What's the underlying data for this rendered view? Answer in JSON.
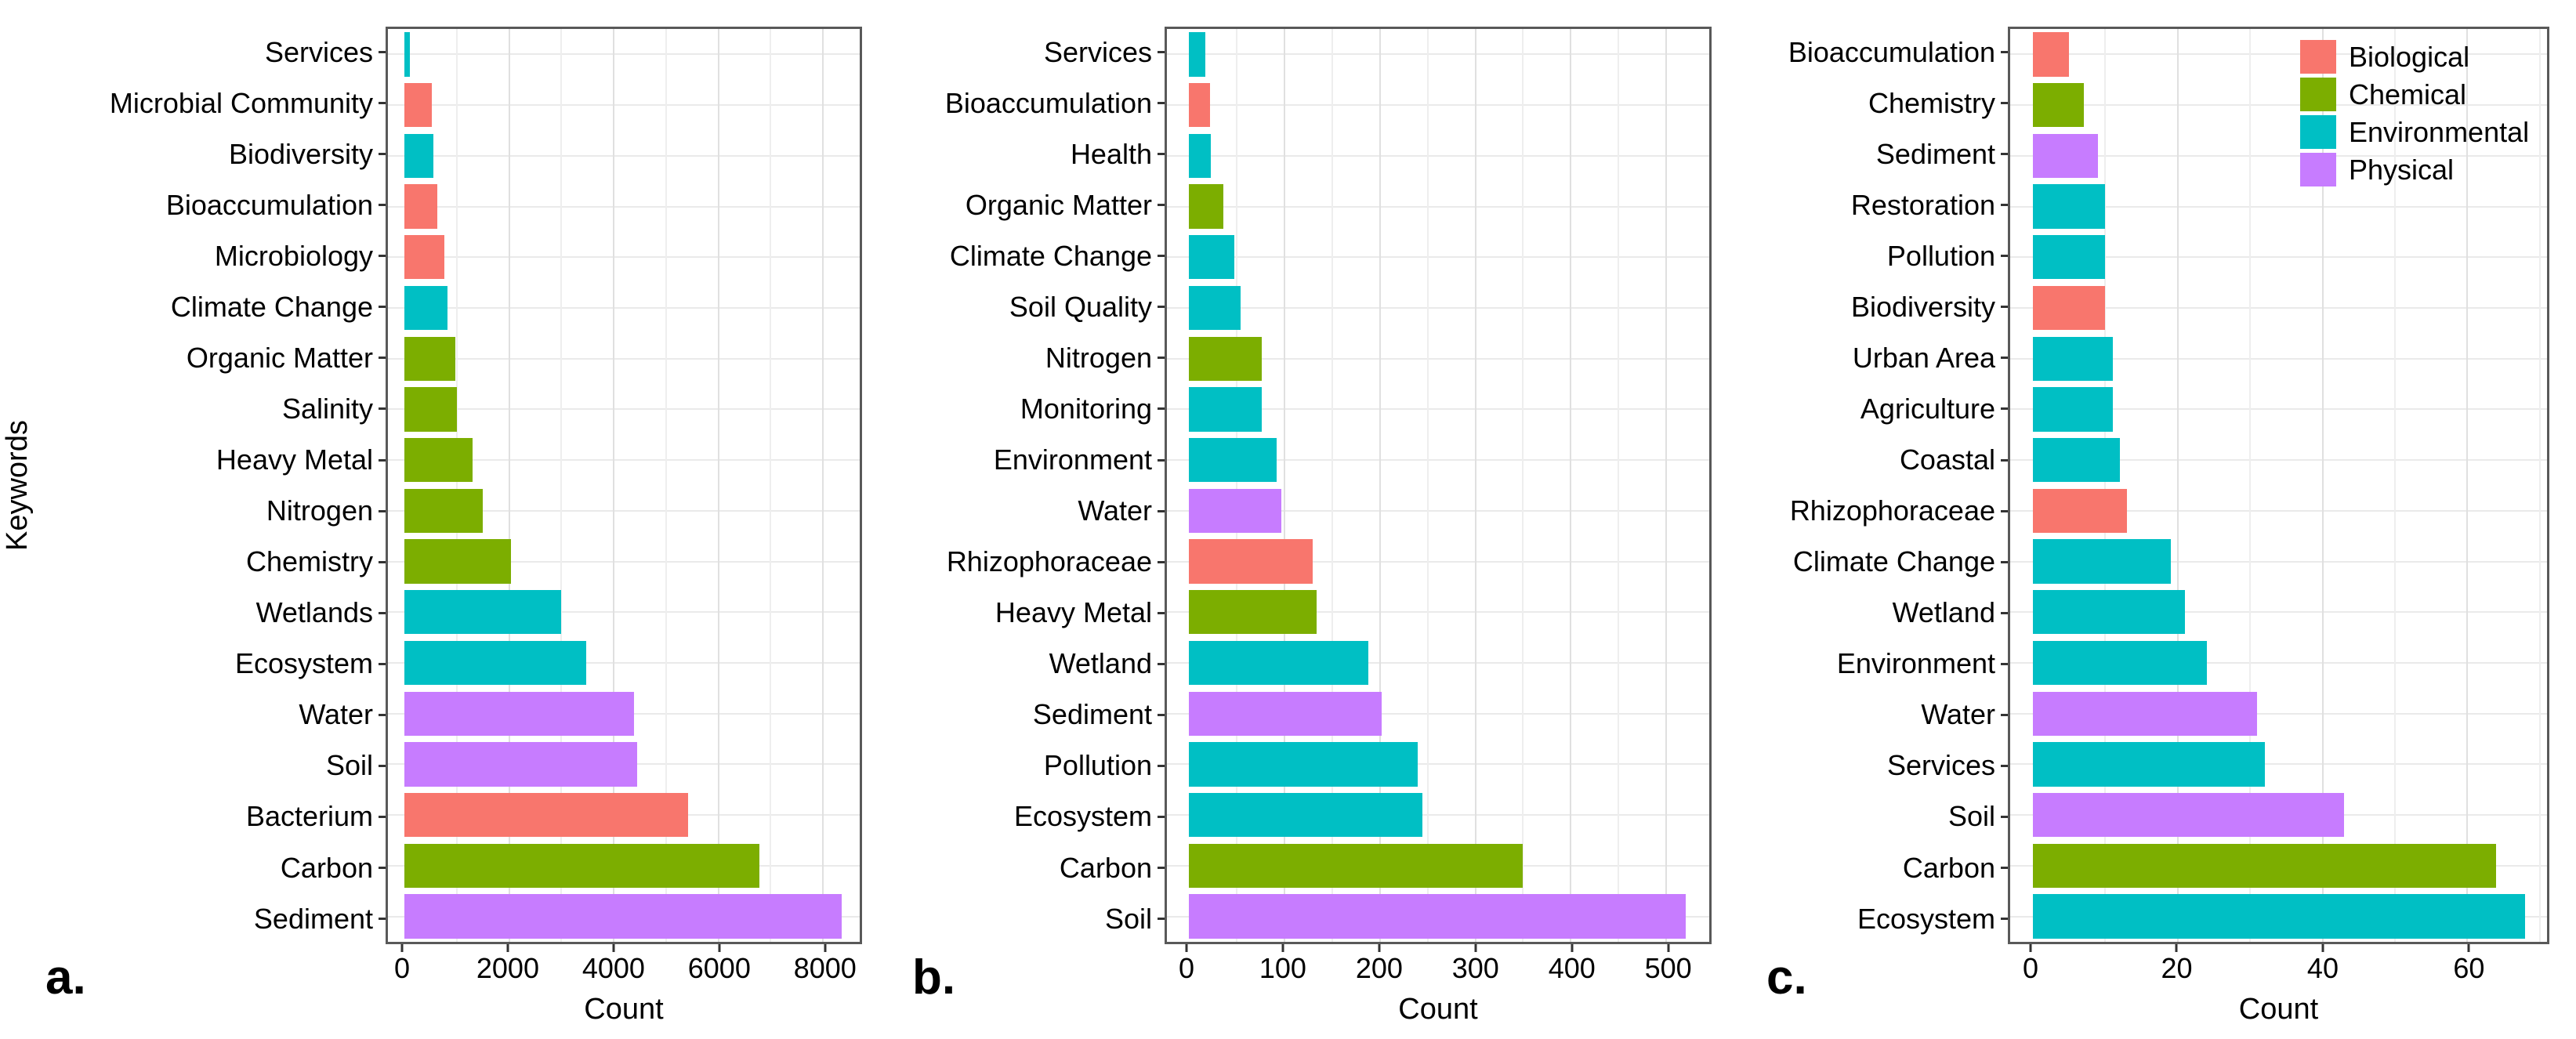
{
  "figure": {
    "y_axis_title": "Keywords",
    "x_axis_title": "Count",
    "background": "#ffffff",
    "panel_border_color": "#595959",
    "legend": {
      "location": "inside-top-right-of-panel-c",
      "items": [
        {
          "label": "Biological",
          "color": "#F8766D"
        },
        {
          "label": "Chemical",
          "color": "#7CAE00"
        },
        {
          "label": "Environmental",
          "color": "#00BFC4"
        },
        {
          "label": "Physical",
          "color": "#C77CFF"
        }
      ]
    }
  },
  "chart_data": [
    {
      "type": "bar",
      "orientation": "horizontal",
      "panel_letter": "a.",
      "xlabel": "Count",
      "ylabel": "Keywords",
      "grid": true,
      "xlim": [
        0,
        8700
      ],
      "xticks": [
        0,
        2000,
        4000,
        6000,
        8000
      ],
      "x_minor_step": 1000,
      "bars": [
        {
          "label": "Services",
          "group": "Environmental",
          "value": 100
        },
        {
          "label": "Microbial Community",
          "group": "Biological",
          "value": 520
        },
        {
          "label": "Biodiversity",
          "group": "Environmental",
          "value": 560
        },
        {
          "label": "Bioaccumulation",
          "group": "Biological",
          "value": 630
        },
        {
          "label": "Microbiology",
          "group": "Biological",
          "value": 760
        },
        {
          "label": "Climate Change",
          "group": "Environmental",
          "value": 820
        },
        {
          "label": "Organic Matter",
          "group": "Chemical",
          "value": 970
        },
        {
          "label": "Salinity",
          "group": "Chemical",
          "value": 1000
        },
        {
          "label": "Heavy Metal",
          "group": "Chemical",
          "value": 1300
        },
        {
          "label": "Nitrogen",
          "group": "Chemical",
          "value": 1490
        },
        {
          "label": "Chemistry",
          "group": "Chemical",
          "value": 2030
        },
        {
          "label": "Wetlands",
          "group": "Environmental",
          "value": 3000
        },
        {
          "label": "Ecosystem",
          "group": "Environmental",
          "value": 3480
        },
        {
          "label": "Water",
          "group": "Physical",
          "value": 4390
        },
        {
          "label": "Soil",
          "group": "Physical",
          "value": 4450
        },
        {
          "label": "Bacterium",
          "group": "Biological",
          "value": 5420
        },
        {
          "label": "Carbon",
          "group": "Chemical",
          "value": 6790
        },
        {
          "label": "Sediment",
          "group": "Physical",
          "value": 8350
        }
      ]
    },
    {
      "type": "bar",
      "orientation": "horizontal",
      "panel_letter": "b.",
      "xlabel": "Count",
      "ylabel": "",
      "grid": true,
      "xlim": [
        0,
        545
      ],
      "xticks": [
        0,
        100,
        200,
        300,
        400,
        500
      ],
      "x_minor_step": 50,
      "bars": [
        {
          "label": "Services",
          "group": "Environmental",
          "value": 17
        },
        {
          "label": "Bioaccumulation",
          "group": "Biological",
          "value": 22
        },
        {
          "label": "Health",
          "group": "Environmental",
          "value": 23
        },
        {
          "label": "Organic Matter",
          "group": "Chemical",
          "value": 36
        },
        {
          "label": "Climate Change",
          "group": "Environmental",
          "value": 48
        },
        {
          "label": "Soil Quality",
          "group": "Environmental",
          "value": 54
        },
        {
          "label": "Nitrogen",
          "group": "Chemical",
          "value": 76
        },
        {
          "label": "Monitoring",
          "group": "Environmental",
          "value": 76
        },
        {
          "label": "Environment",
          "group": "Environmental",
          "value": 92
        },
        {
          "label": "Water",
          "group": "Physical",
          "value": 97
        },
        {
          "label": "Rhizophoraceae",
          "group": "Biological",
          "value": 130
        },
        {
          "label": "Heavy Metal",
          "group": "Chemical",
          "value": 134
        },
        {
          "label": "Wetland",
          "group": "Environmental",
          "value": 188
        },
        {
          "label": "Sediment",
          "group": "Physical",
          "value": 202
        },
        {
          "label": "Pollution",
          "group": "Environmental",
          "value": 240
        },
        {
          "label": "Ecosystem",
          "group": "Environmental",
          "value": 245
        },
        {
          "label": "Carbon",
          "group": "Chemical",
          "value": 350
        },
        {
          "label": "Soil",
          "group": "Physical",
          "value": 520
        }
      ]
    },
    {
      "type": "bar",
      "orientation": "horizontal",
      "panel_letter": "c.",
      "xlabel": "Count",
      "ylabel": "",
      "grid": true,
      "xlim": [
        0,
        71
      ],
      "xticks": [
        0,
        20,
        40,
        60
      ],
      "x_minor_step": 10,
      "legend_position": "inside top-right",
      "bars": [
        {
          "label": "Bioaccumulation",
          "group": "Biological",
          "value": 5
        },
        {
          "label": "Chemistry",
          "group": "Chemical",
          "value": 7
        },
        {
          "label": "Sediment",
          "group": "Physical",
          "value": 9
        },
        {
          "label": "Restoration",
          "group": "Environmental",
          "value": 10
        },
        {
          "label": "Pollution",
          "group": "Environmental",
          "value": 10
        },
        {
          "label": "Biodiversity",
          "group": "Biological",
          "value": 10
        },
        {
          "label": "Urban Area",
          "group": "Environmental",
          "value": 11
        },
        {
          "label": "Agriculture",
          "group": "Environmental",
          "value": 11
        },
        {
          "label": "Coastal",
          "group": "Environmental",
          "value": 12
        },
        {
          "label": "Rhizophoraceae",
          "group": "Biological",
          "value": 13
        },
        {
          "label": "Climate Change",
          "group": "Environmental",
          "value": 19
        },
        {
          "label": "Wetland",
          "group": "Environmental",
          "value": 21
        },
        {
          "label": "Environment",
          "group": "Environmental",
          "value": 24
        },
        {
          "label": "Water",
          "group": "Physical",
          "value": 31
        },
        {
          "label": "Services",
          "group": "Environmental",
          "value": 32
        },
        {
          "label": "Soil",
          "group": "Physical",
          "value": 43
        },
        {
          "label": "Carbon",
          "group": "Chemical",
          "value": 64
        },
        {
          "label": "Ecosystem",
          "group": "Environmental",
          "value": 68
        }
      ]
    }
  ]
}
